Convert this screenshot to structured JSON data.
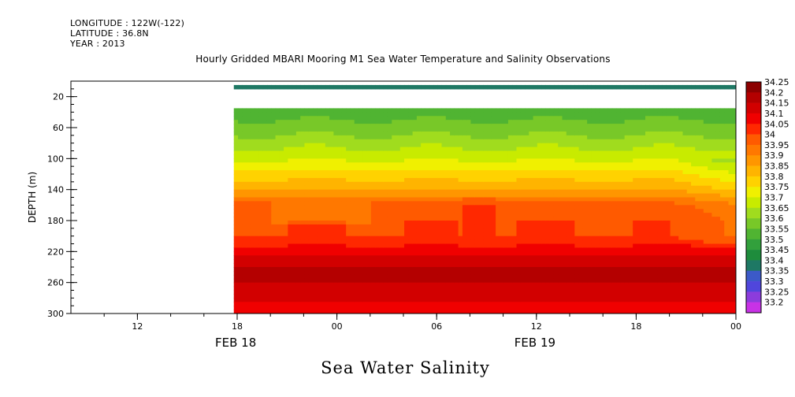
{
  "header": {
    "longitude_line": "LONGITUDE : 122W(-122)",
    "latitude_line": "LATITUDE : 36.8N",
    "year_line": "YEAR : 2013"
  },
  "chart_data": {
    "type": "heatmap",
    "title": "Hourly Gridded MBARI Mooring M1 Sea Water Temperature and Salinity Observations",
    "bottom_title": "Sea Water Salinity",
    "ylabel": "DEPTH (m)",
    "xlabel": "",
    "x_unit": "hours since FEB 18 00",
    "xlim": [
      8,
      48
    ],
    "ylim": [
      300,
      0
    ],
    "y_reversed": true,
    "y_ticks": [
      {
        "value": 20,
        "label": "20"
      },
      {
        "value": 60,
        "label": "60"
      },
      {
        "value": 100,
        "label": "100"
      },
      {
        "value": 140,
        "label": "140"
      },
      {
        "value": 180,
        "label": "180"
      },
      {
        "value": 220,
        "label": "220"
      },
      {
        "value": 260,
        "label": "260"
      },
      {
        "value": 300,
        "label": "300"
      }
    ],
    "x_ticks": [
      {
        "value": 12,
        "label": "12"
      },
      {
        "value": 18,
        "label": "18"
      },
      {
        "value": 24,
        "label": "00"
      },
      {
        "value": 30,
        "label": "06"
      },
      {
        "value": 36,
        "label": "12"
      },
      {
        "value": 42,
        "label": "18"
      },
      {
        "value": 48,
        "label": "00"
      }
    ],
    "date_labels": [
      {
        "value": 18,
        "label": "FEB 18"
      },
      {
        "value": 36,
        "label": "FEB 19"
      }
    ],
    "data_start_hour": 17.8,
    "no_data_depth_range": [
      10,
      35
    ],
    "colorbar": {
      "labels": [
        "34.25",
        "34.2",
        "34.15",
        "34.1",
        "34.05",
        "34",
        "33.95",
        "33.9",
        "33.85",
        "33.8",
        "33.75",
        "33.7",
        "33.65",
        "33.6",
        "33.55",
        "33.5",
        "33.45",
        "33.4",
        "33.35",
        "33.3",
        "33.25",
        "33.2"
      ],
      "colors": [
        "#8c0000",
        "#b40000",
        "#d20000",
        "#f00000",
        "#ff2800",
        "#ff5a00",
        "#ff7800",
        "#ff9600",
        "#ffb400",
        "#ffd200",
        "#f0f000",
        "#c8eb00",
        "#a0dc1e",
        "#78c828",
        "#50b432",
        "#32a03c",
        "#1e8c3c",
        "#1e7864",
        "#3c5ac8",
        "#5046dc",
        "#8c3cdc",
        "#c832e6"
      ]
    },
    "profile_depths": [
      5,
      10,
      40,
      60,
      80,
      100,
      120,
      140,
      160,
      180,
      200,
      220,
      240,
      250,
      260,
      280,
      300
    ],
    "profile_salinity": [
      33.37,
      33.45,
      33.58,
      33.62,
      33.68,
      33.74,
      33.82,
      33.9,
      34.02,
      34.05,
      34.05,
      34.13,
      34.2,
      34.24,
      34.2,
      34.16,
      34.13
    ]
  }
}
